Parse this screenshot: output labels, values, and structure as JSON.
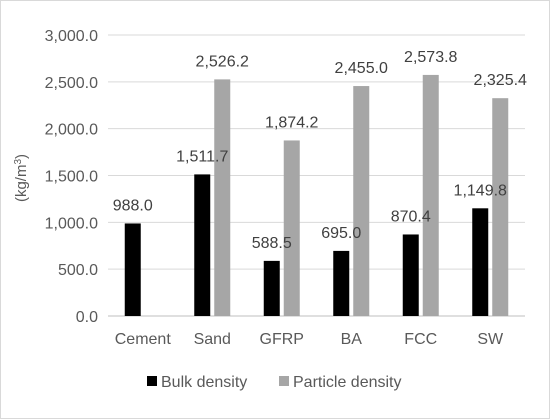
{
  "chart_data": {
    "type": "bar",
    "title": "",
    "xlabel": "",
    "ylabel": "(kg/m",
    "ylabel_sup": "3",
    "ylabel_close": ")",
    "ylim": [
      0,
      3000
    ],
    "yticks": [
      "0.0",
      "500.0",
      "1,000.0",
      "1,500.0",
      "2,000.0",
      "2,500.0",
      "3,000.0"
    ],
    "categories": [
      "Cement",
      "Sand",
      "GFRP",
      "BA",
      "FCC",
      "SW"
    ],
    "series": [
      {
        "name": "Bulk density",
        "color": "#000000",
        "values": [
          988.0,
          1511.7,
          588.5,
          695.0,
          870.4,
          1149.8
        ],
        "labels": [
          "988.0",
          "1,511.7",
          "588.5",
          "695.0",
          "870.4",
          "1,149.8"
        ]
      },
      {
        "name": "Particle density",
        "color": "#a6a6a6",
        "values": [
          null,
          2526.2,
          1874.2,
          2455.0,
          2573.8,
          2325.4
        ],
        "labels": [
          "",
          "2,526.2",
          "1,874.2",
          "2,455.0",
          "2,573.8",
          "2,325.4"
        ]
      }
    ],
    "grid": true,
    "legend_position": "bottom"
  }
}
